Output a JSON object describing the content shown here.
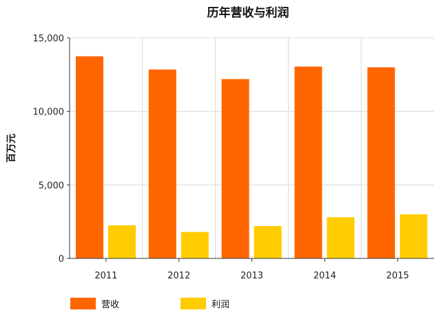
{
  "chart_data": {
    "type": "bar",
    "title": "历年营收与利润",
    "xlabel": "",
    "ylabel": "百万元",
    "categories": [
      "2011",
      "2012",
      "2013",
      "2014",
      "2015"
    ],
    "series": [
      {
        "name": "营收",
        "values": [
          13750,
          12850,
          12200,
          13050,
          13000
        ],
        "color": "#FF6600"
      },
      {
        "name": "利润",
        "values": [
          2250,
          1800,
          2200,
          2800,
          3000
        ],
        "color": "#FFCC00"
      }
    ],
    "ylim": [
      0,
      15000
    ],
    "yticks": [
      0,
      5000,
      10000,
      15000
    ],
    "ytick_labels": [
      "0",
      "5,000",
      "10,000",
      "15,000"
    ],
    "grid": true,
    "legend": "bottom-left"
  }
}
